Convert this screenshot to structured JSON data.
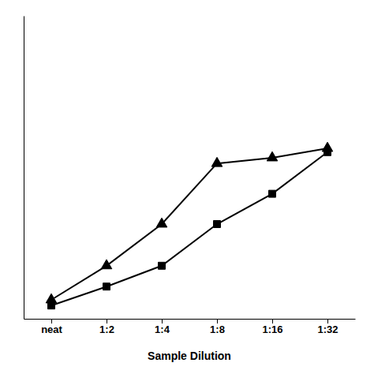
{
  "chart_data": {
    "type": "line",
    "xlabel": "Sample Dilution",
    "categories": [
      "neat",
      "1:2",
      "1:4",
      "1:8",
      "1:16",
      "1:32"
    ],
    "series": [
      {
        "color": "#000000",
        "marker": "triangle",
        "values": [
          0.1,
          0.28,
          0.5,
          0.82,
          0.85,
          0.9
        ]
      },
      {
        "color": "#000000",
        "marker": "square",
        "values": [
          0.07,
          0.17,
          0.28,
          0.5,
          0.66,
          0.88
        ]
      }
    ],
    "ylim": [
      0,
      1.6
    ],
    "tick_labels": "x"
  }
}
